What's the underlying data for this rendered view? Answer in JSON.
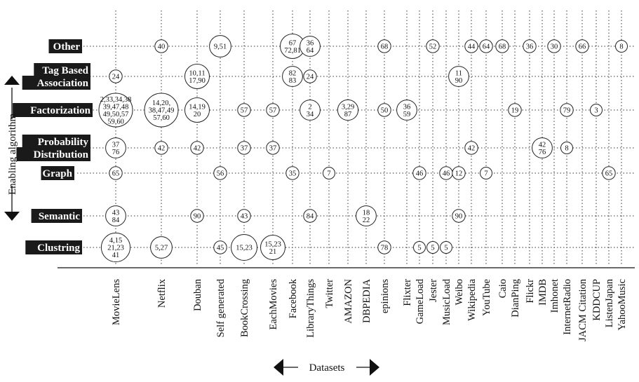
{
  "chart_data": {
    "type": "table",
    "xlabel": "Datasets",
    "ylabel": "Enabling algorithm",
    "rows": [
      "Other",
      "Tag Based Association",
      "Factorization",
      "Probability Distribution",
      "Graph",
      "Semantic",
      "Clustring"
    ],
    "row_label_lines": [
      [
        "Other"
      ],
      [
        "Tag Based",
        "Association"
      ],
      [
        "Factorization"
      ],
      [
        "Probability",
        "Distribution"
      ],
      [
        "Graph"
      ],
      [
        "Semantic"
      ],
      [
        "Clustring"
      ]
    ],
    "columns": [
      "MovieLens",
      "Netflix",
      "Douban",
      "Self generated",
      "BookCrossing",
      "EachMovies",
      "Facebook",
      "LibraryThings",
      "Twitter",
      "AMAZON",
      "DBPEDIA",
      "epinions",
      "Flixter",
      "GameLoad",
      "Jester",
      "MusicLoad",
      "Weibo",
      "Wikipedia",
      "YouTube",
      "Caio",
      "DianPing",
      "Flickr",
      "IMDB",
      "Imhonet",
      "InternetRadio",
      "JACM Citation",
      "KDDCUP",
      "ListenJapan",
      "YahooMusic"
    ],
    "cells": [
      {
        "row": "Other",
        "col": "Netflix",
        "lines": [
          "40"
        ]
      },
      {
        "row": "Other",
        "col": "Self generated",
        "lines": [
          "9,51"
        ]
      },
      {
        "row": "Other",
        "col": "Facebook",
        "lines": [
          "67",
          "72,81"
        ]
      },
      {
        "row": "Other",
        "col": "LibraryThings",
        "lines": [
          "36",
          "64"
        ]
      },
      {
        "row": "Other",
        "col": "epinions",
        "lines": [
          "68"
        ]
      },
      {
        "row": "Other",
        "col": "Jester",
        "lines": [
          "52"
        ]
      },
      {
        "row": "Other",
        "col": "Wikipedia",
        "lines": [
          "44"
        ]
      },
      {
        "row": "Other",
        "col": "YouTube",
        "lines": [
          "64"
        ]
      },
      {
        "row": "Other",
        "col": "Caio",
        "lines": [
          "68"
        ]
      },
      {
        "row": "Other",
        "col": "Flickr",
        "lines": [
          "36"
        ]
      },
      {
        "row": "Other",
        "col": "Imhonet",
        "lines": [
          "30"
        ]
      },
      {
        "row": "Other",
        "col": "JACM Citation",
        "lines": [
          "66"
        ]
      },
      {
        "row": "Other",
        "col": "YahooMusic",
        "lines": [
          "8"
        ]
      },
      {
        "row": "Tag Based Association",
        "col": "MovieLens",
        "lines": [
          "24"
        ]
      },
      {
        "row": "Tag Based Association",
        "col": "Douban",
        "lines": [
          "10,11",
          "17,90"
        ]
      },
      {
        "row": "Tag Based Association",
        "col": "Facebook",
        "lines": [
          "82",
          "83"
        ]
      },
      {
        "row": "Tag Based Association",
        "col": "LibraryThings",
        "lines": [
          "24"
        ]
      },
      {
        "row": "Tag Based Association",
        "col": "Weibo",
        "lines": [
          "11",
          "90"
        ]
      },
      {
        "row": "Factorization",
        "col": "MovieLens",
        "lines": [
          "2,33,34,38",
          "39,47,48",
          "49,50,57",
          "59,60"
        ]
      },
      {
        "row": "Factorization",
        "col": "Netflix",
        "lines": [
          "14,20,",
          "38,47,49",
          "57,60"
        ]
      },
      {
        "row": "Factorization",
        "col": "Douban",
        "lines": [
          "14,19",
          "20"
        ]
      },
      {
        "row": "Factorization",
        "col": "BookCrossing",
        "lines": [
          "57"
        ]
      },
      {
        "row": "Factorization",
        "col": "EachMovies",
        "lines": [
          "57"
        ]
      },
      {
        "row": "Factorization",
        "col": "LibraryThings",
        "lines": [
          "2",
          "34"
        ]
      },
      {
        "row": "Factorization",
        "col": "AMAZON",
        "lines": [
          "3,29",
          "87"
        ]
      },
      {
        "row": "Factorization",
        "col": "epinions",
        "lines": [
          "50"
        ]
      },
      {
        "row": "Factorization",
        "col": "Flixter",
        "lines": [
          "36",
          "59"
        ]
      },
      {
        "row": "Factorization",
        "col": "DianPing",
        "lines": [
          "19"
        ]
      },
      {
        "row": "Factorization",
        "col": "InternetRadio",
        "lines": [
          "79"
        ]
      },
      {
        "row": "Factorization",
        "col": "KDDCUP",
        "lines": [
          "3"
        ]
      },
      {
        "row": "Probability Distribution",
        "col": "MovieLens",
        "lines": [
          "37",
          "76"
        ]
      },
      {
        "row": "Probability Distribution",
        "col": "Netflix",
        "lines": [
          "42"
        ]
      },
      {
        "row": "Probability Distribution",
        "col": "Douban",
        "lines": [
          "42"
        ]
      },
      {
        "row": "Probability Distribution",
        "col": "BookCrossing",
        "lines": [
          "37"
        ]
      },
      {
        "row": "Probability Distribution",
        "col": "EachMovies",
        "lines": [
          "37"
        ]
      },
      {
        "row": "Probability Distribution",
        "col": "Wikipedia",
        "lines": [
          "42"
        ]
      },
      {
        "row": "Probability Distribution",
        "col": "IMDB",
        "lines": [
          "42",
          "76"
        ]
      },
      {
        "row": "Probability Distribution",
        "col": "InternetRadio",
        "lines": [
          "8"
        ]
      },
      {
        "row": "Graph",
        "col": "MovieLens",
        "lines": [
          "65"
        ]
      },
      {
        "row": "Graph",
        "col": "Self generated",
        "lines": [
          "56"
        ]
      },
      {
        "row": "Graph",
        "col": "Facebook",
        "lines": [
          "35"
        ]
      },
      {
        "row": "Graph",
        "col": "Twitter",
        "lines": [
          "7"
        ]
      },
      {
        "row": "Graph",
        "col": "GameLoad",
        "lines": [
          "46"
        ]
      },
      {
        "row": "Graph",
        "col": "MusicLoad",
        "lines": [
          "46"
        ]
      },
      {
        "row": "Graph",
        "col": "Weibo",
        "lines": [
          "12"
        ]
      },
      {
        "row": "Graph",
        "col": "YouTube",
        "lines": [
          "7"
        ]
      },
      {
        "row": "Graph",
        "col": "ListenJapan",
        "lines": [
          "65"
        ]
      },
      {
        "row": "Semantic",
        "col": "MovieLens",
        "lines": [
          "43",
          "84"
        ]
      },
      {
        "row": "Semantic",
        "col": "Douban",
        "lines": [
          "90"
        ]
      },
      {
        "row": "Semantic",
        "col": "BookCrossing",
        "lines": [
          "43"
        ]
      },
      {
        "row": "Semantic",
        "col": "LibraryThings",
        "lines": [
          "84"
        ]
      },
      {
        "row": "Semantic",
        "col": "DBPEDIA",
        "lines": [
          "18",
          "22"
        ]
      },
      {
        "row": "Semantic",
        "col": "Weibo",
        "lines": [
          "90"
        ]
      },
      {
        "row": "Clustring",
        "col": "MovieLens",
        "lines": [
          "4,15",
          "21,23",
          "41"
        ]
      },
      {
        "row": "Clustring",
        "col": "Netflix",
        "lines": [
          "5,27"
        ]
      },
      {
        "row": "Clustring",
        "col": "Self generated",
        "lines": [
          "45"
        ]
      },
      {
        "row": "Clustring",
        "col": "BookCrossing",
        "lines": [
          "15,23"
        ]
      },
      {
        "row": "Clustring",
        "col": "EachMovies",
        "lines": [
          "15,23",
          "21"
        ]
      },
      {
        "row": "Clustring",
        "col": "epinions",
        "lines": [
          "78"
        ]
      },
      {
        "row": "Clustring",
        "col": "GameLoad",
        "lines": [
          "5"
        ]
      },
      {
        "row": "Clustring",
        "col": "Jester",
        "lines": [
          "5"
        ]
      },
      {
        "row": "Clustring",
        "col": "MusicLoad",
        "lines": [
          "5"
        ]
      }
    ],
    "grid": true,
    "legend": "none"
  }
}
